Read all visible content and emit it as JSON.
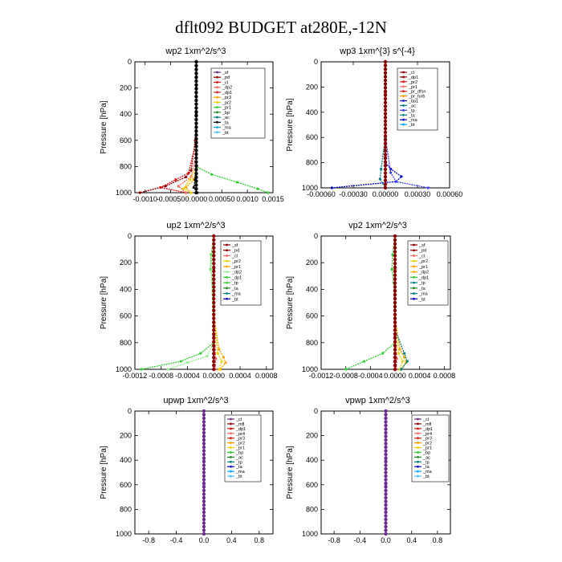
{
  "page_title": "dflt092  BUDGET at280E,-12N",
  "chart_data": [
    {
      "type": "line",
      "title": "wp2   1xm^2/s^3",
      "ylabel": "Pressure [hPa]",
      "ylim": [
        1000,
        0
      ],
      "yticks": [
        "0",
        "200",
        "400",
        "600",
        "800",
        "1000"
      ],
      "xlim": [
        -0.0012,
        0.0015
      ],
      "xticks": [
        {
          "v": -0.001,
          "l": "-0.0010"
        },
        {
          "v": -0.0005,
          "l": "-0.00050"
        },
        {
          "v": 0.0,
          "l": "0.0000"
        },
        {
          "v": 0.0005,
          "l": "0.00050"
        },
        {
          "v": 0.001,
          "l": "0.0010"
        },
        {
          "v": 0.0015,
          "l": "0.0015"
        }
      ],
      "legend": [
        "_sf",
        "_pd",
        "_cl",
        "_dp2",
        "_dp1",
        "_pr3",
        "_pr2",
        "_pr1",
        "_bp",
        "_ac",
        "_ta",
        "_ma",
        "_bt"
      ],
      "series": [
        {
          "name": "_sf",
          "color": "#5b2a86",
          "x": [
            0,
            0,
            0,
            0,
            0,
            0
          ],
          "y": [
            0,
            200,
            400,
            600,
            800,
            1000
          ]
        },
        {
          "name": "_pd",
          "color": "#8b0000",
          "x": [
            0,
            0,
            0,
            -2e-05,
            -0.0001,
            -0.0002,
            -0.0006,
            -0.0011
          ],
          "y": [
            0,
            200,
            400,
            600,
            830,
            880,
            950,
            1000
          ]
        },
        {
          "name": "_cl",
          "color": "#e01010",
          "x": [
            0,
            0,
            0,
            0,
            -0.00015,
            -0.0004,
            -0.0007,
            -0.0002
          ],
          "y": [
            0,
            200,
            400,
            600,
            850,
            900,
            960,
            1000
          ]
        },
        {
          "name": "_dp2",
          "color": "#ff6666",
          "x": [
            0,
            0,
            0,
            -0.0001,
            -0.00035,
            -0.0002
          ],
          "y": [
            0,
            400,
            700,
            880,
            950,
            1000
          ]
        },
        {
          "name": "_pr3",
          "color": "#ffa500",
          "x": [
            0,
            0,
            0,
            -5e-05,
            -0.0002,
            -0.0001
          ],
          "y": [
            0,
            500,
            800,
            900,
            960,
            1000
          ]
        },
        {
          "name": "_pr2",
          "color": "#e8d000",
          "x": [
            0,
            0,
            0,
            -0.00012,
            -0.00025,
            -0.0001
          ],
          "y": [
            0,
            500,
            800,
            900,
            970,
            1000
          ]
        },
        {
          "name": "_pr1",
          "color": "#32cd32",
          "x": [
            0,
            0,
            0,
            0.0003,
            0.0008,
            0.0012,
            0.0014
          ],
          "y": [
            0,
            400,
            800,
            860,
            920,
            970,
            1000
          ]
        },
        {
          "name": "_ta",
          "color": "#000000",
          "x": [
            0,
            0,
            0,
            -2e-05,
            -5e-05,
            2e-05
          ],
          "y": [
            0,
            400,
            800,
            900,
            960,
            1000
          ]
        }
      ]
    },
    {
      "type": "line",
      "title": "wp3   1xm^{3} s^{-4}",
      "ylabel": "Pressure [hPa]",
      "ylim": [
        1000,
        0
      ],
      "yticks": [
        "0",
        "200",
        "400",
        "600",
        "800",
        "1000"
      ],
      "xlim": [
        -0.0006,
        0.0006
      ],
      "xticks": [
        {
          "v": -0.0006,
          "l": "-0.00060"
        },
        {
          "v": -0.0003,
          "l": "-0.00030"
        },
        {
          "v": 0.0,
          "l": "0.00000"
        },
        {
          "v": 0.0003,
          "l": "0.00030"
        },
        {
          "v": 0.0006,
          "l": "0.00060"
        }
      ],
      "legend": [
        "_cl",
        "_dp1",
        "_pr2",
        "_pr1",
        "_pr_dfsn",
        "_pr_turb",
        "_bp1",
        "_ac",
        "_tp",
        "_ta",
        "_ma",
        "_bt"
      ],
      "series": [
        {
          "name": "_bp1",
          "color": "#0000cc",
          "x": [
            0,
            0,
            0,
            5e-05,
            0.00015,
            0.0001,
            -0.0005
          ],
          "y": [
            0,
            500,
            800,
            850,
            910,
            950,
            1000
          ]
        },
        {
          "name": "_tp",
          "color": "#4040ff",
          "x": [
            0,
            0,
            5e-05,
            0.0001,
            0.0004
          ],
          "y": [
            0,
            600,
            880,
            950,
            1000
          ]
        },
        {
          "name": "_ac",
          "color": "#008080",
          "x": [
            0,
            0,
            -4e-05,
            -5e-05,
            0
          ],
          "y": [
            0,
            600,
            850,
            930,
            1000
          ]
        },
        {
          "name": "_cl",
          "color": "#8b0000",
          "x": [
            0,
            0,
            0,
            0,
            0
          ],
          "y": [
            0,
            250,
            500,
            750,
            1000
          ]
        }
      ]
    },
    {
      "type": "line",
      "title": "up2   1xm^2/s^3",
      "ylabel": "Pressure [hPa]",
      "ylim": [
        1000,
        0
      ],
      "yticks": [
        "0",
        "200",
        "400",
        "600",
        "800",
        "1000"
      ],
      "xlim": [
        -0.0012,
        0.0009
      ],
      "xticks": [
        {
          "v": -0.0012,
          "l": "-0.0012"
        },
        {
          "v": -0.0008,
          "l": "-0.0008"
        },
        {
          "v": -0.0004,
          "l": "-0.0004"
        },
        {
          "v": 0.0,
          "l": "0.0000"
        },
        {
          "v": 0.0004,
          "l": "0.0004"
        },
        {
          "v": 0.0008,
          "l": "0.0008"
        }
      ],
      "legend": [
        "_sf",
        "_pd",
        "_cl",
        "_pr2",
        "_pr1",
        "_dp2",
        "_dp1",
        "_tp",
        "_ta",
        "_ma",
        "_bt"
      ],
      "series": [
        {
          "name": "_dp1",
          "color": "#32cd32",
          "x": [
            0,
            -4e-05,
            -5e-05,
            -2e-05,
            0,
            -0.0002,
            -0.0005,
            -0.0011
          ],
          "y": [
            0,
            140,
            250,
            350,
            800,
            880,
            940,
            1000
          ]
        },
        {
          "name": "_dp2",
          "color": "#90ee90",
          "x": [
            0,
            -3e-05,
            -4e-05,
            0,
            -0.0001,
            -0.0004,
            -0.0007
          ],
          "y": [
            0,
            150,
            250,
            800,
            900,
            950,
            1000
          ]
        },
        {
          "name": "_pr1",
          "color": "#ffa500",
          "x": [
            0,
            0,
            8e-05,
            0.00015,
            0.00018,
            0.0001
          ],
          "y": [
            0,
            600,
            850,
            910,
            950,
            1000
          ]
        },
        {
          "name": "_pr2",
          "color": "#e8d000",
          "x": [
            0,
            0,
            6e-05,
            0.00012,
            8e-05
          ],
          "y": [
            0,
            600,
            880,
            940,
            1000
          ]
        },
        {
          "name": "_cl",
          "color": "#ff6666",
          "x": [
            0,
            0,
            3e-05,
            2e-05
          ],
          "y": [
            0,
            700,
            920,
            1000
          ]
        },
        {
          "name": "_sf",
          "color": "#8b0000",
          "x": [
            0,
            0,
            0,
            0,
            0
          ],
          "y": [
            0,
            250,
            500,
            750,
            1000
          ]
        }
      ]
    },
    {
      "type": "line",
      "title": "vp2   1xm^2/s^3",
      "ylabel": "Pressure [hPa]",
      "ylim": [
        1000,
        0
      ],
      "yticks": [
        "0",
        "200",
        "400",
        "600",
        "800",
        "1000"
      ],
      "xlim": [
        -0.0012,
        0.0009
      ],
      "xticks": [
        {
          "v": -0.0012,
          "l": "-0.0012"
        },
        {
          "v": -0.0008,
          "l": "-0.0008"
        },
        {
          "v": -0.0004,
          "l": "-0.0004"
        },
        {
          "v": 0.0,
          "l": "0.0000"
        },
        {
          "v": 0.0004,
          "l": "0.0004"
        },
        {
          "v": 0.0008,
          "l": "0.0008"
        }
      ],
      "legend": [
        "_sf",
        "_pd",
        "_cl",
        "_pr2",
        "_pr1",
        "_dp2",
        "_dp1",
        "_tp",
        "_ta",
        "_ma",
        "_bt"
      ],
      "series": [
        {
          "name": "_dp1",
          "color": "#32cd32",
          "x": [
            0,
            -4e-05,
            -5e-05,
            -2e-05,
            0,
            -0.0002,
            -0.0005,
            -0.0008
          ],
          "y": [
            0,
            140,
            250,
            350,
            800,
            880,
            940,
            1000
          ]
        },
        {
          "name": "_pr1",
          "color": "#ffa500",
          "x": [
            0,
            0,
            8e-05,
            0.00015,
            0.00018,
            0.0001
          ],
          "y": [
            0,
            600,
            850,
            910,
            950,
            1000
          ]
        },
        {
          "name": "_pr2",
          "color": "#e8d000",
          "x": [
            0,
            0,
            6e-05,
            0.00012,
            8e-05
          ],
          "y": [
            0,
            600,
            880,
            940,
            1000
          ]
        },
        {
          "name": "_tp",
          "color": "#008080",
          "x": [
            0,
            0,
            0.00015,
            0.0002,
            0.0001
          ],
          "y": [
            0,
            700,
            880,
            940,
            1000
          ]
        },
        {
          "name": "_cl",
          "color": "#ff6666",
          "x": [
            0,
            0,
            3e-05,
            2e-05
          ],
          "y": [
            0,
            700,
            920,
            1000
          ]
        },
        {
          "name": "_sf",
          "color": "#8b0000",
          "x": [
            0,
            0,
            0,
            0,
            0
          ],
          "y": [
            0,
            250,
            500,
            750,
            1000
          ]
        }
      ]
    },
    {
      "type": "line",
      "title": "upwp   1xm^2/s^3",
      "ylabel": "Pressure [hPa]",
      "ylim": [
        1000,
        0
      ],
      "yticks": [
        "0",
        "200",
        "400",
        "600",
        "800",
        "1000"
      ],
      "xlim": [
        -1.0,
        1.0
      ],
      "xticks": [
        {
          "v": -0.8,
          "l": "-0.8"
        },
        {
          "v": -0.4,
          "l": "-0.4"
        },
        {
          "v": 0.0,
          "l": "0.0"
        },
        {
          "v": 0.4,
          "l": "0.4"
        },
        {
          "v": 0.8,
          "l": "0.8"
        }
      ],
      "legend": [
        "_cl",
        "_mfl",
        "_dp1",
        "_pr4",
        "_pr3",
        "_pr2",
        "_pr1",
        "_bp",
        "_ac",
        "_tp",
        "_ta",
        "_ma",
        "_bt"
      ],
      "series": [
        {
          "name": "_cl",
          "color": "#6a2c91",
          "x": [
            0,
            0,
            0,
            0,
            0,
            0
          ],
          "y": [
            0,
            200,
            400,
            600,
            800,
            1000
          ]
        }
      ]
    },
    {
      "type": "line",
      "title": "vpwp   1xm^2/s^3",
      "ylabel": "Pressure [hPa]",
      "ylim": [
        1000,
        0
      ],
      "yticks": [
        "0",
        "200",
        "400",
        "600",
        "800",
        "1000"
      ],
      "xlim": [
        -1.0,
        1.0
      ],
      "xticks": [
        {
          "v": -0.8,
          "l": "-0.8"
        },
        {
          "v": -0.4,
          "l": "-0.4"
        },
        {
          "v": 0.0,
          "l": "0.0"
        },
        {
          "v": 0.4,
          "l": "0.4"
        },
        {
          "v": 0.8,
          "l": "0.8"
        }
      ],
      "legend": [
        "_cl",
        "_mfl",
        "_dp1",
        "_pr4",
        "_pr3",
        "_pr2",
        "_pr1",
        "_bp",
        "_ac",
        "_tp",
        "_ta",
        "_ma",
        "_bt"
      ],
      "series": [
        {
          "name": "_cl",
          "color": "#6a2c91",
          "x": [
            0,
            0,
            0,
            0,
            0,
            0
          ],
          "y": [
            0,
            200,
            400,
            600,
            800,
            1000
          ]
        }
      ]
    }
  ]
}
